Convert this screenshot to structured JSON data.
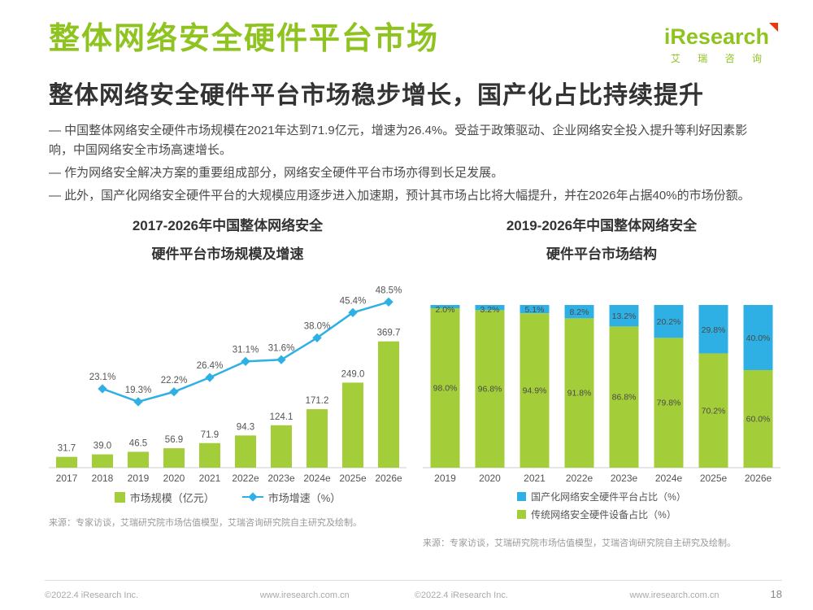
{
  "header": {
    "title": "整体网络安全硬件平台市场",
    "logo_text": "iResearch",
    "logo_subtitle": "艾 瑞 咨 询",
    "heading": "整体网络安全硬件平台市场稳步增长，国产化占比持续提升"
  },
  "bullets": [
    "—  中国整体网络安全硬件市场规模在2021年达到71.9亿元，增速为26.4%。受益于政策驱动、企业网络安全投入提升等利好因素影响，中国网络安全市场高速增长。",
    "—  作为网络安全解决方案的重要组成部分，网络安全硬件平台市场亦得到长足发展。",
    "—  此外，国产化网络安全硬件平台的大规模应用逐步进入加速期，预计其市场占比将大幅提升，并在2026年占据40%的市场份额。"
  ],
  "chart_data": [
    {
      "type": "bar+line",
      "title_line1": "2017-2026年中国整体网络安全",
      "title_line2": "硬件平台市场规模及增速",
      "categories": [
        "2017",
        "2018",
        "2019",
        "2020",
        "2021",
        "2022e",
        "2023e",
        "2024e",
        "2025e",
        "2026e"
      ],
      "series": [
        {
          "name": "市场规模（亿元）",
          "type": "bar",
          "color": "#a4cd3a",
          "values": [
            31.7,
            39.0,
            46.5,
            56.9,
            71.9,
            94.3,
            124.1,
            171.2,
            249.0,
            369.7
          ]
        },
        {
          "name": "市场增速（%）",
          "type": "line",
          "color": "#2fb0e5",
          "start_index": 1,
          "values": [
            23.1,
            19.3,
            22.2,
            26.4,
            31.1,
            31.6,
            38.0,
            45.4,
            48.5
          ]
        }
      ],
      "legend_position": "bottom",
      "grid": false,
      "source": "来源：专家访谈，艾瑞研究院市场估值模型，艾瑞咨询研究院自主研究及绘制。"
    },
    {
      "type": "stacked-bar",
      "title_line1": "2019-2026年中国整体网络安全",
      "title_line2": "硬件平台市场结构",
      "categories": [
        "2019",
        "2020",
        "2021",
        "2022e",
        "2023e",
        "2024e",
        "2025e",
        "2026e"
      ],
      "ylim": [
        0,
        100
      ],
      "series": [
        {
          "name": "国产化网络安全硬件平台占比（%）",
          "color": "#2fb0e5",
          "values": [
            2.0,
            3.2,
            5.1,
            8.2,
            13.2,
            20.2,
            29.8,
            40.0
          ]
        },
        {
          "name": "传统网络安全硬件设备占比（%）",
          "color": "#a4cd3a",
          "values": [
            98.0,
            96.8,
            94.9,
            91.8,
            86.8,
            79.8,
            70.2,
            60.0
          ]
        }
      ],
      "legend_position": "bottom",
      "grid": false,
      "source": "来源：专家访谈，艾瑞研究院市场估值模型，艾瑞咨询研究院自主研究及绘制。"
    }
  ],
  "footer": {
    "copyright_left": "©2022.4 iResearch Inc.",
    "url_left": "www.iresearch.com.cn",
    "copyright_right": "©2022.4 iResearch Inc.",
    "url_right": "www.iresearch.com.cn",
    "page_number": "18"
  },
  "colors": {
    "brand_green": "#8fc31f",
    "bar_green": "#a4cd3a",
    "line_blue": "#2fb0e5",
    "logo_flag_red": "#e8380d"
  }
}
